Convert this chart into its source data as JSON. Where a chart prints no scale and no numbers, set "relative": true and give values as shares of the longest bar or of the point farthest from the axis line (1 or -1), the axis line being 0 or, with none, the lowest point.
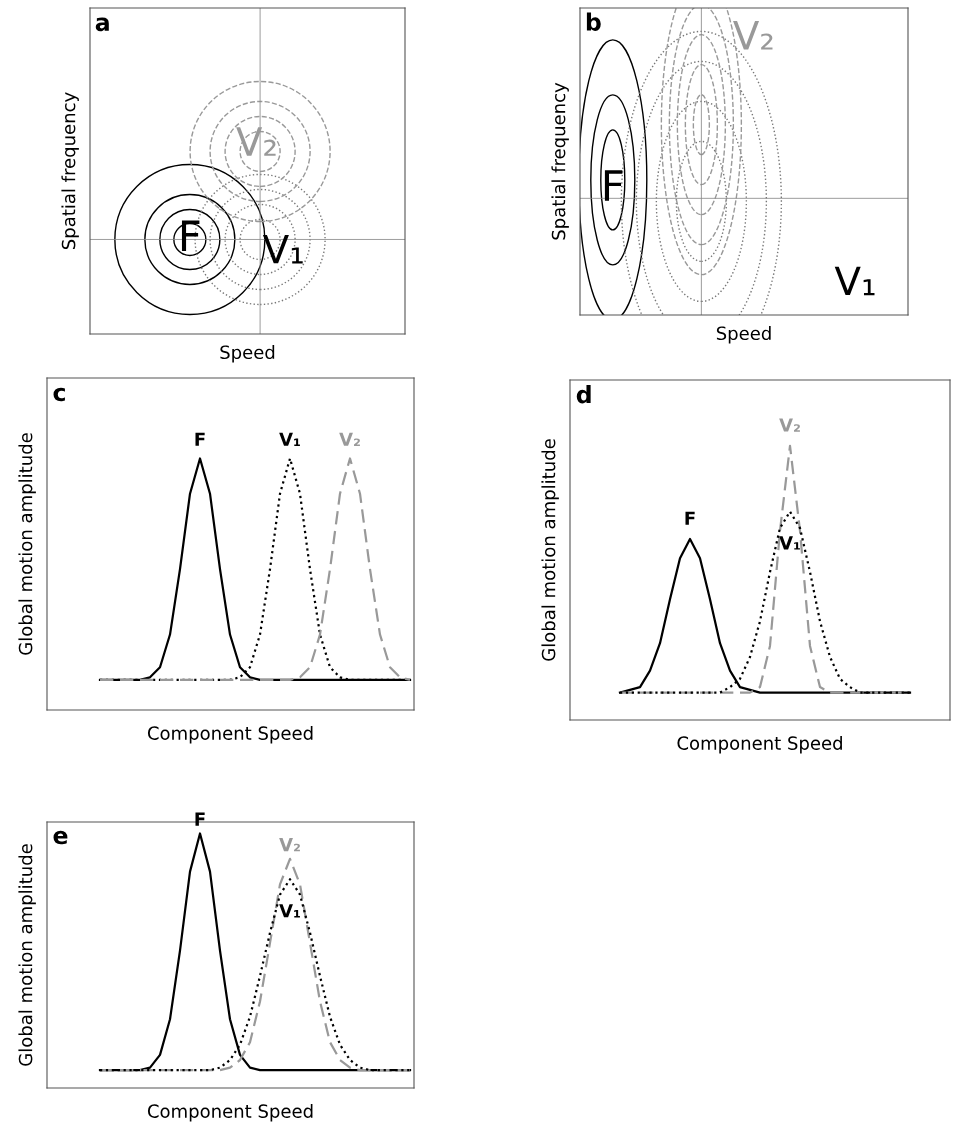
{
  "chart_data": [
    {
      "type": "other",
      "title": "a",
      "xlabel": "Speed",
      "ylabel": "Spatial frequency",
      "annotations": [
        "F",
        "V₁",
        "V₂"
      ]
    },
    {
      "type": "other",
      "title": "b",
      "xlabel": "Speed",
      "ylabel": "Spatial frequency",
      "annotations": [
        "F",
        "V₂",
        "V₁"
      ]
    },
    {
      "type": "line",
      "title": "c",
      "xlabel": "Component Speed",
      "ylabel": "Global motion amplitude",
      "relative": true,
      "categories": [
        null,
        null,
        null,
        null,
        null,
        null,
        null,
        null,
        null,
        null,
        null,
        null,
        null,
        null,
        null,
        null,
        null,
        null,
        null,
        null,
        null,
        null,
        null,
        null,
        null,
        null,
        null,
        null,
        null,
        null,
        null,
        null
      ],
      "series": [
        {
          "name": "F",
          "color": "#000000",
          "line_style": "solid",
          "values": [
            0.12,
            0.12,
            0.12,
            0.12,
            0.12,
            0.13,
            0.17,
            0.3,
            0.56,
            0.86,
            1.0,
            0.86,
            0.56,
            0.3,
            0.17,
            0.13,
            0.12,
            0.12,
            0.12,
            0.12,
            0.12,
            0.12,
            0.12,
            0.12,
            0.12,
            0.12,
            0.12,
            0.12,
            0.12,
            0.12,
            0.12,
            0.12
          ]
        },
        {
          "name": "V₁",
          "color": "#000000",
          "line_style": "dotted",
          "values": [
            0.12,
            0.12,
            0.12,
            0.12,
            0.12,
            0.12,
            0.12,
            0.12,
            0.12,
            0.12,
            0.12,
            0.12,
            0.12,
            0.12,
            0.13,
            0.17,
            0.3,
            0.56,
            0.86,
            1.0,
            0.86,
            0.56,
            0.3,
            0.17,
            0.13,
            0.12,
            0.12,
            0.12,
            0.12,
            0.12,
            0.12,
            0.12
          ]
        },
        {
          "name": "V₂",
          "color": "#999999",
          "line_style": "dashed",
          "values": [
            0.12,
            0.12,
            0.12,
            0.12,
            0.12,
            0.12,
            0.12,
            0.12,
            0.12,
            0.12,
            0.12,
            0.12,
            0.12,
            0.12,
            0.12,
            0.12,
            0.12,
            0.12,
            0.12,
            0.12,
            0.13,
            0.17,
            0.3,
            0.56,
            0.86,
            1.0,
            0.86,
            0.56,
            0.3,
            0.17,
            0.13,
            0.12
          ]
        }
      ]
    },
    {
      "type": "line",
      "title": "d",
      "xlabel": "Component Speed",
      "ylabel": "Global motion amplitude",
      "relative": true,
      "categories": [
        null,
        null,
        null,
        null,
        null,
        null,
        null,
        null,
        null,
        null,
        null,
        null,
        null,
        null,
        null,
        null,
        null,
        null,
        null,
        null,
        null,
        null,
        null,
        null,
        null,
        null,
        null,
        null,
        null,
        null
      ],
      "series": [
        {
          "name": "F",
          "color": "#000000",
          "line_style": "solid",
          "values": [
            0.1,
            0.11,
            0.12,
            0.18,
            0.28,
            0.44,
            0.59,
            0.66,
            0.59,
            0.44,
            0.28,
            0.18,
            0.12,
            0.11,
            0.1,
            0.1,
            0.1,
            0.1,
            0.1,
            0.1,
            0.1,
            0.1,
            0.1,
            0.1,
            0.1,
            0.1,
            0.1,
            0.1,
            0.1,
            0.1
          ]
        },
        {
          "name": "V₂",
          "color": "#999999",
          "line_style": "dashed",
          "values": [
            0.1,
            0.1,
            0.1,
            0.1,
            0.1,
            0.1,
            0.1,
            0.1,
            0.1,
            0.1,
            0.1,
            0.1,
            0.1,
            0.1,
            0.12,
            0.27,
            0.69,
            1.0,
            0.69,
            0.27,
            0.12,
            0.1,
            0.1,
            0.1,
            0.1,
            0.1,
            0.1,
            0.1,
            0.1,
            0.1
          ]
        },
        {
          "name": "V₁",
          "color": "#000000",
          "line_style": "dotted",
          "values": [
            0.1,
            0.1,
            0.1,
            0.1,
            0.1,
            0.1,
            0.1,
            0.1,
            0.1,
            0.1,
            0.1,
            0.12,
            0.15,
            0.23,
            0.36,
            0.54,
            0.7,
            0.76,
            0.7,
            0.54,
            0.36,
            0.23,
            0.15,
            0.12,
            0.1,
            0.1,
            0.1,
            0.1,
            0.1,
            0.1
          ]
        }
      ]
    },
    {
      "type": "line",
      "title": "e",
      "xlabel": "Component Speed",
      "ylabel": "Global motion amplitude",
      "relative": true,
      "categories": [
        null,
        null,
        null,
        null,
        null,
        null,
        null,
        null,
        null,
        null,
        null,
        null,
        null,
        null,
        null,
        null,
        null,
        null,
        null,
        null,
        null,
        null,
        null,
        null,
        null,
        null,
        null,
        null,
        null,
        null,
        null,
        null
      ],
      "series": [
        {
          "name": "F",
          "color": "#000000",
          "line_style": "solid",
          "values": [
            0.07,
            0.07,
            0.07,
            0.07,
            0.07,
            0.08,
            0.13,
            0.27,
            0.54,
            0.85,
            1.0,
            0.85,
            0.54,
            0.27,
            0.13,
            0.08,
            0.07,
            0.07,
            0.07,
            0.07,
            0.07,
            0.07,
            0.07,
            0.07,
            0.07,
            0.07,
            0.07,
            0.07,
            0.07,
            0.07,
            0.07,
            0.07
          ]
        },
        {
          "name": "V₂",
          "color": "#999999",
          "line_style": "dashed",
          "values": [
            0.07,
            0.07,
            0.07,
            0.07,
            0.07,
            0.07,
            0.07,
            0.07,
            0.07,
            0.07,
            0.07,
            0.07,
            0.07,
            0.08,
            0.11,
            0.18,
            0.34,
            0.57,
            0.8,
            0.9,
            0.8,
            0.57,
            0.34,
            0.18,
            0.11,
            0.08,
            0.07,
            0.07,
            0.07,
            0.07,
            0.07,
            0.07
          ]
        },
        {
          "name": "V₁",
          "color": "#000000",
          "line_style": "dotted",
          "values": [
            0.07,
            0.07,
            0.07,
            0.07,
            0.07,
            0.07,
            0.07,
            0.07,
            0.07,
            0.07,
            0.07,
            0.07,
            0.08,
            0.11,
            0.17,
            0.28,
            0.44,
            0.61,
            0.76,
            0.82,
            0.76,
            0.61,
            0.44,
            0.28,
            0.17,
            0.11,
            0.08,
            0.07,
            0.07,
            0.07,
            0.07,
            0.07
          ]
        }
      ]
    }
  ]
}
